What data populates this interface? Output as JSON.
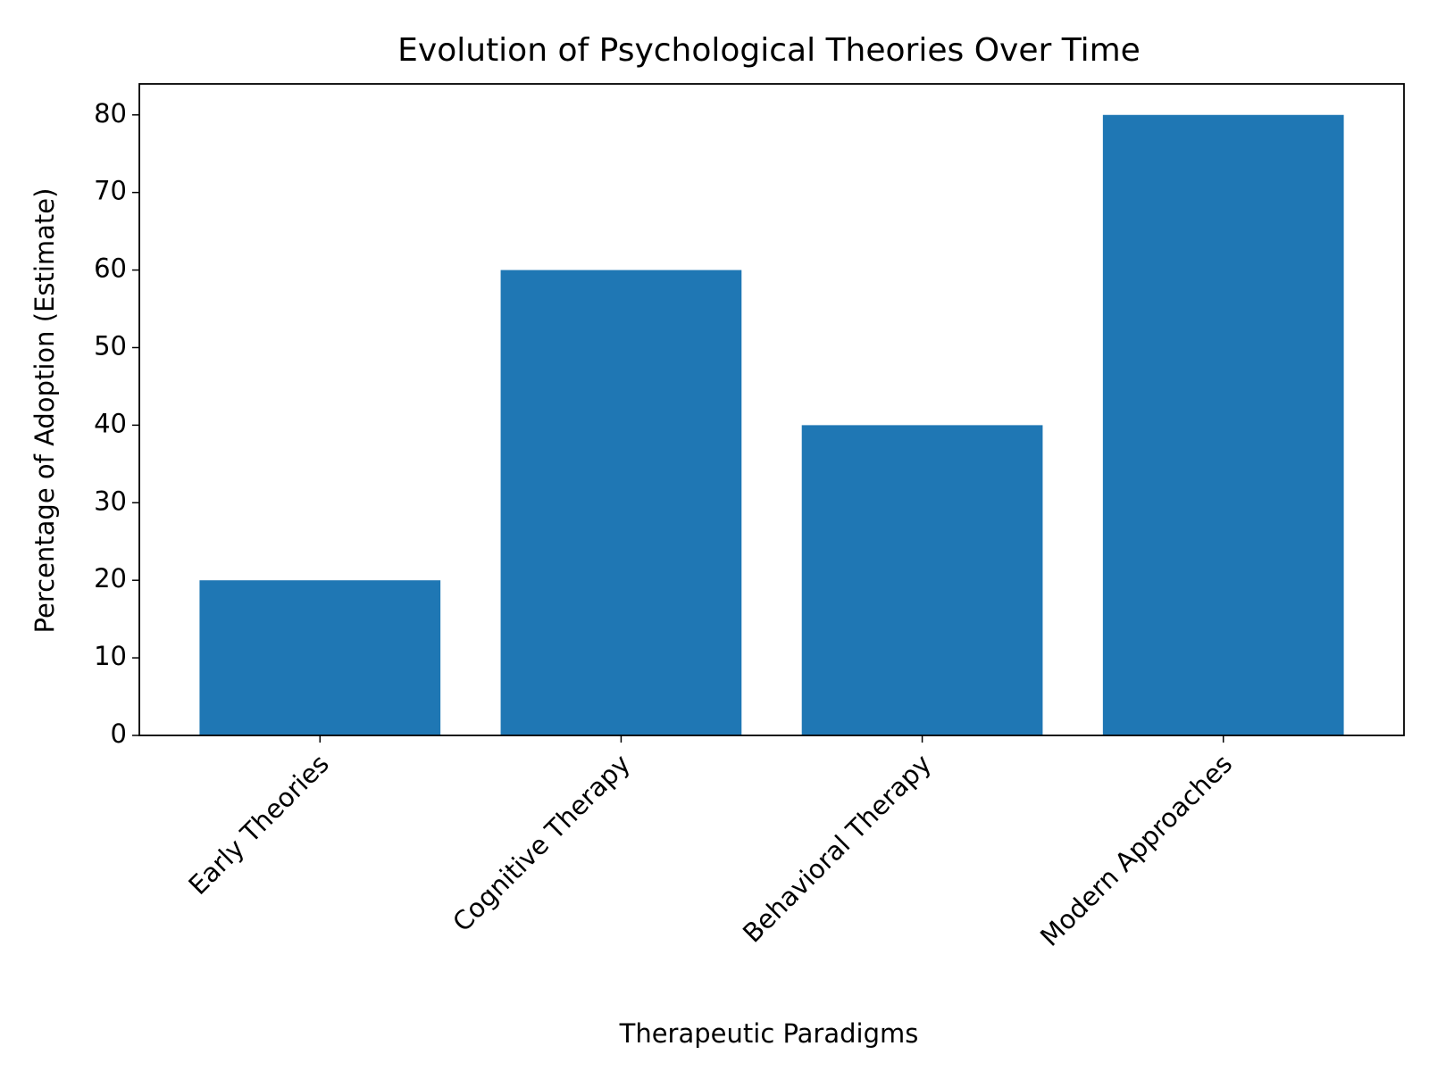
{
  "chart_data": {
    "type": "bar",
    "title": "Evolution of Psychological Theories Over Time",
    "x_label": "Therapeutic Paradigms",
    "y_label": "Percentage of Adoption (Estimate)",
    "categories": [
      "Early Theories",
      "Cognitive Therapy",
      "Behavioral Therapy",
      "Modern Approaches"
    ],
    "values": [
      20,
      60,
      40,
      80
    ],
    "color": "#1f77b4",
    "ylim": [
      0,
      84
    ],
    "yticks": [
      0,
      10,
      20,
      30,
      40,
      50,
      60,
      70,
      80
    ],
    "grid": false
  }
}
